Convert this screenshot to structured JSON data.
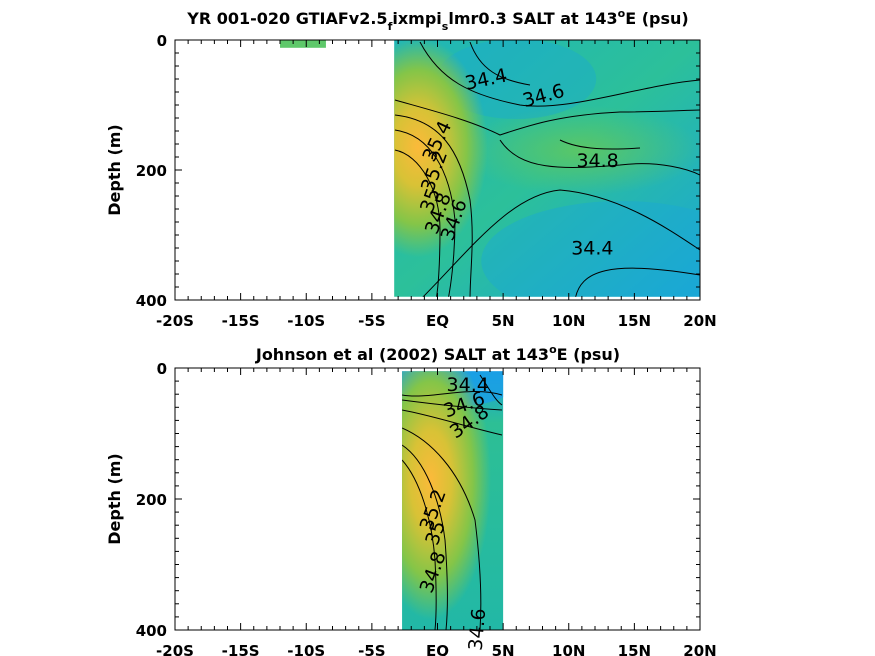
{
  "colors": {
    "low": "#1aa3e0",
    "mid": "#21bca4",
    "high": "#f9b93a",
    "axis": "#000000",
    "contour": "#000000"
  },
  "chart_data": [
    {
      "type": "heatmap",
      "title": {
        "main": "YR 001-020 GTIAFv2.5",
        "sub1": "f",
        "mid": "ixmpi",
        "sub2": "s",
        "tail": "lmr0.3 SALT at 143",
        "sup": "o",
        "end": "E (psu)"
      },
      "ylabel": "Depth (m)",
      "xlim": [
        -20,
        20
      ],
      "ylim": [
        0,
        400
      ],
      "y_reversed": true,
      "x_ticks": [
        -20,
        -15,
        -10,
        -5,
        0,
        5,
        10,
        15,
        20
      ],
      "x_tick_labels": [
        "-20S",
        "-15S",
        "-10S",
        "-5S",
        "EQ",
        "5N",
        "10N",
        "15N",
        "20N"
      ],
      "y_ticks": [
        0,
        200,
        400
      ],
      "y_tick_labels": [
        "0",
        "200",
        "400"
      ],
      "data_patches": [
        {
          "x": [
            -3.3,
            20
          ],
          "y": [
            0,
            395
          ],
          "fill": "ocean"
        },
        {
          "x": [
            -12,
            -8.5
          ],
          "y": [
            0,
            12
          ],
          "fill": "strip"
        }
      ],
      "warm_core": {
        "x": -1.5,
        "y": 165,
        "peak_salt": 35.5
      },
      "contour_labels": [
        {
          "text": "34.4",
          "x": 3.8,
          "y": 70,
          "angle": -12
        },
        {
          "text": "34.6",
          "x": 8.2,
          "y": 95,
          "angle": -15
        },
        {
          "text": "34.8",
          "x": 12.2,
          "y": 195,
          "angle": 0
        },
        {
          "text": "34.4",
          "x": 11.8,
          "y": 330,
          "angle": 0
        },
        {
          "text": "35.4",
          "x": 0.4,
          "y": 160,
          "angle": -65
        },
        {
          "text": "35.2",
          "x": 0.2,
          "y": 205,
          "angle": -70
        },
        {
          "text": "35",
          "x": -0.1,
          "y": 250,
          "angle": -70
        },
        {
          "text": "34.8",
          "x": 0.5,
          "y": 270,
          "angle": -70
        },
        {
          "text": "34.6",
          "x": 1.7,
          "y": 280,
          "angle": -70
        }
      ]
    },
    {
      "type": "heatmap",
      "title": {
        "main": "Johnson et al (2002) SALT at 143",
        "sup": "o",
        "end": "E (psu)"
      },
      "ylabel": "Depth (m)",
      "xlim": [
        -20,
        20
      ],
      "ylim": [
        0,
        400
      ],
      "y_reversed": true,
      "x_ticks": [
        -20,
        -15,
        -10,
        -5,
        0,
        5,
        10,
        15,
        20
      ],
      "x_tick_labels": [
        "-20S",
        "-15S",
        "-10S",
        "-5S",
        "EQ",
        "5N",
        "10N",
        "15N",
        "20N"
      ],
      "y_ticks": [
        0,
        200,
        400
      ],
      "y_tick_labels": [
        "0",
        "200",
        "400"
      ],
      "data_patches": [
        {
          "x": [
            -2.7,
            5
          ],
          "y": [
            5,
            400
          ],
          "fill": "ocean"
        }
      ],
      "warm_core": {
        "x": -0.5,
        "y": 170,
        "peak_salt": 35.3
      },
      "contour_labels": [
        {
          "text": "34.4",
          "x": 2.3,
          "y": 35,
          "angle": 0
        },
        {
          "text": "34.6",
          "x": 2.2,
          "y": 65,
          "angle": -20
        },
        {
          "text": "34.8",
          "x": 2.7,
          "y": 90,
          "angle": -35
        },
        {
          "text": "35.2",
          "x": 0.1,
          "y": 220,
          "angle": -70
        },
        {
          "text": "35",
          "x": 0.3,
          "y": 255,
          "angle": -70
        },
        {
          "text": "34.8",
          "x": 0.1,
          "y": 315,
          "angle": -70
        },
        {
          "text": "34.6",
          "x": 3.5,
          "y": 400,
          "angle": -85
        }
      ]
    }
  ]
}
